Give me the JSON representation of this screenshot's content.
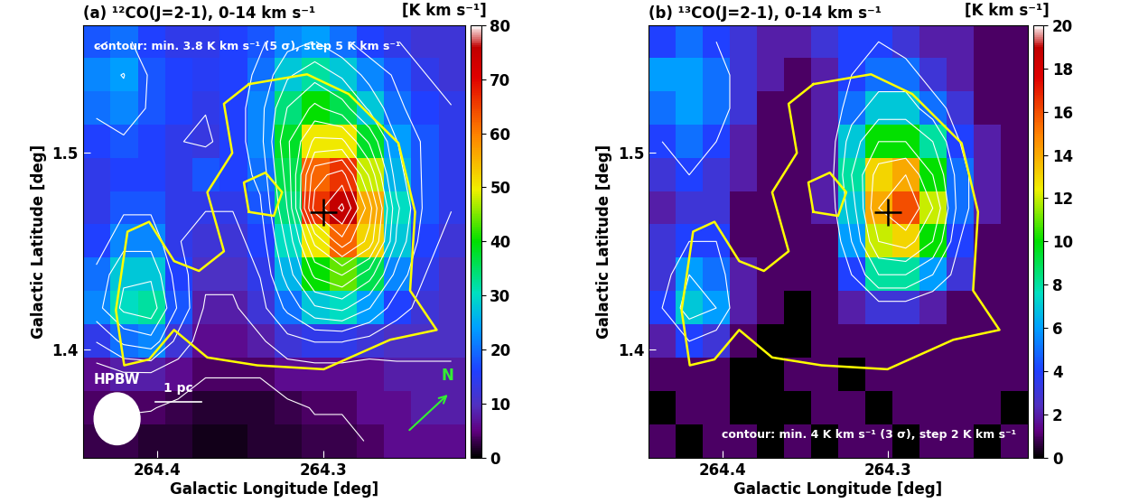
{
  "chart_data": [
    {
      "type": "heatmap",
      "title": "(a) ¹²CO(J=2-1), 0-14 km s⁻¹",
      "xlabel": "Galactic Longitude [deg]",
      "ylabel": "Galactic Latitude [deg]",
      "colorbar_label": "[K km s⁻¹]",
      "xlim": [
        264.445,
        264.215
      ],
      "ylim": [
        1.345,
        1.565
      ],
      "xticks": [
        264.4,
        264.3
      ],
      "yticks": [
        1.4,
        1.5
      ],
      "colorbar_range": [
        0,
        80
      ],
      "colorbar_ticks": [
        0,
        10,
        20,
        30,
        40,
        50,
        60,
        70,
        80
      ],
      "cells": [
        [
          18,
          20,
          16,
          14,
          14,
          16,
          18,
          22,
          24,
          20,
          16,
          14,
          12,
          12
        ],
        [
          22,
          24,
          18,
          16,
          15,
          16,
          20,
          28,
          32,
          28,
          22,
          18,
          14,
          12
        ],
        [
          20,
          22,
          18,
          16,
          14,
          16,
          22,
          34,
          40,
          36,
          28,
          20,
          16,
          14
        ],
        [
          16,
          18,
          16,
          14,
          13,
          16,
          22,
          38,
          50,
          50,
          38,
          24,
          18,
          14
        ],
        [
          14,
          16,
          16,
          14,
          18,
          16,
          20,
          36,
          62,
          66,
          48,
          26,
          18,
          14
        ],
        [
          14,
          18,
          18,
          14,
          14,
          14,
          18,
          34,
          66,
          75,
          56,
          30,
          18,
          14
        ],
        [
          16,
          22,
          22,
          14,
          12,
          12,
          16,
          30,
          50,
          62,
          52,
          28,
          16,
          12
        ],
        [
          20,
          28,
          28,
          16,
          10,
          10,
          14,
          26,
          40,
          44,
          36,
          22,
          14,
          10
        ],
        [
          22,
          30,
          32,
          18,
          8,
          8,
          12,
          20,
          28,
          30,
          24,
          16,
          12,
          10
        ],
        [
          14,
          20,
          22,
          12,
          6,
          6,
          8,
          12,
          14,
          14,
          12,
          10,
          10,
          10
        ],
        [
          6,
          8,
          8,
          6,
          4,
          4,
          4,
          6,
          6,
          6,
          6,
          8,
          8,
          8
        ],
        [
          4,
          4,
          4,
          3,
          2,
          2,
          2,
          3,
          4,
          4,
          6,
          6,
          8,
          8
        ],
        [
          3,
          3,
          2,
          2,
          1,
          1,
          2,
          2,
          3,
          3,
          4,
          6,
          6,
          6
        ]
      ],
      "contour_levels": [
        3.8,
        8.8,
        13.8,
        18.8,
        23.8,
        28.8,
        33.8,
        38.8,
        43.8,
        48.8,
        53.8,
        58.8,
        63.8,
        68.8,
        73.8
      ],
      "contour_note": "contour: min. 3.8 K km s⁻¹ (5 σ), step 5 K km s⁻¹",
      "halpha_contours": [
        [
          [
            264.345,
            1.535
          ],
          [
            264.31,
            1.54
          ],
          [
            264.285,
            1.53
          ],
          [
            264.255,
            1.505
          ],
          [
            264.245,
            1.47
          ],
          [
            264.248,
            1.43
          ],
          [
            264.232,
            1.41
          ],
          [
            264.26,
            1.405
          ],
          [
            264.3,
            1.39
          ],
          [
            264.34,
            1.392
          ],
          [
            264.37,
            1.396
          ],
          [
            264.39,
            1.41
          ],
          [
            264.405,
            1.395
          ],
          [
            264.42,
            1.392
          ],
          [
            264.425,
            1.42
          ],
          [
            264.418,
            1.46
          ],
          [
            264.405,
            1.465
          ],
          [
            264.39,
            1.445
          ],
          [
            264.375,
            1.44
          ],
          [
            264.36,
            1.45
          ],
          [
            264.37,
            1.48
          ],
          [
            264.355,
            1.5
          ],
          [
            264.36,
            1.525
          ],
          [
            264.345,
            1.535
          ]
        ],
        [
          [
            264.345,
            1.47
          ],
          [
            264.33,
            1.468
          ],
          [
            264.325,
            1.48
          ],
          [
            264.335,
            1.49
          ],
          [
            264.348,
            1.485
          ],
          [
            264.345,
            1.47
          ]
        ]
      ],
      "source_position": [
        264.3,
        1.47
      ],
      "hpbw_label": "HPBW",
      "scale_label": "1 pc",
      "north_label": "N"
    },
    {
      "type": "heatmap",
      "title": "(b) ¹³CO(J=2-1), 0-14 km s⁻¹",
      "xlabel": "Galactic Longitude [deg]",
      "ylabel": "Galactic Latitude [deg]",
      "colorbar_label": "[K km s⁻¹]",
      "xlim": [
        264.445,
        264.215
      ],
      "ylim": [
        1.345,
        1.565
      ],
      "xticks": [
        264.4,
        264.3
      ],
      "yticks": [
        1.4,
        1.5
      ],
      "colorbar_range": [
        0,
        20
      ],
      "colorbar_ticks": [
        0,
        2,
        4,
        6,
        8,
        10,
        12,
        14,
        16,
        18,
        20
      ],
      "cells": [
        [
          4,
          5,
          4,
          3,
          2,
          2,
          3,
          4,
          4,
          3,
          2,
          2,
          1,
          1
        ],
        [
          6,
          6,
          5,
          3,
          2,
          1,
          2,
          4,
          5,
          5,
          3,
          2,
          1,
          1
        ],
        [
          5,
          6,
          5,
          3,
          1,
          1,
          2,
          5,
          7,
          7,
          5,
          3,
          1,
          1
        ],
        [
          4,
          5,
          4,
          2,
          1,
          1,
          2,
          7,
          10,
          10,
          8,
          4,
          2,
          1
        ],
        [
          3,
          4,
          3,
          2,
          1,
          1,
          2,
          8,
          13,
          14,
          10,
          5,
          2,
          1
        ],
        [
          2,
          3,
          3,
          1,
          1,
          1,
          2,
          7,
          14,
          16,
          12,
          5,
          2,
          1
        ],
        [
          3,
          4,
          4,
          1,
          1,
          1,
          1,
          6,
          12,
          13,
          10,
          4,
          1,
          1
        ],
        [
          3,
          6,
          5,
          2,
          1,
          1,
          1,
          4,
          8,
          8,
          6,
          3,
          1,
          1
        ],
        [
          4,
          7,
          6,
          2,
          1,
          0,
          1,
          2,
          3,
          3,
          2,
          1,
          1,
          1
        ],
        [
          2,
          4,
          3,
          1,
          0,
          0,
          1,
          1,
          1,
          1,
          1,
          1,
          1,
          1
        ],
        [
          1,
          1,
          1,
          0,
          0,
          1,
          1,
          0,
          1,
          1,
          1,
          1,
          1,
          1
        ],
        [
          0,
          1,
          1,
          0,
          0,
          0,
          1,
          1,
          0,
          1,
          1,
          1,
          1,
          0
        ],
        [
          1,
          0,
          1,
          1,
          0,
          1,
          0,
          1,
          1,
          0,
          1,
          1,
          0,
          1
        ]
      ],
      "contour_levels": [
        4,
        6,
        8,
        10,
        12,
        14,
        16,
        18
      ],
      "contour_note": "contour: min. 4 K km s⁻¹ (3 σ), step 2 K km s⁻¹",
      "halpha_contours": [
        [
          [
            264.345,
            1.535
          ],
          [
            264.31,
            1.54
          ],
          [
            264.285,
            1.53
          ],
          [
            264.255,
            1.505
          ],
          [
            264.245,
            1.47
          ],
          [
            264.248,
            1.43
          ],
          [
            264.232,
            1.41
          ],
          [
            264.26,
            1.405
          ],
          [
            264.3,
            1.39
          ],
          [
            264.34,
            1.392
          ],
          [
            264.37,
            1.396
          ],
          [
            264.39,
            1.41
          ],
          [
            264.405,
            1.395
          ],
          [
            264.42,
            1.392
          ],
          [
            264.425,
            1.42
          ],
          [
            264.418,
            1.46
          ],
          [
            264.405,
            1.465
          ],
          [
            264.39,
            1.445
          ],
          [
            264.375,
            1.44
          ],
          [
            264.36,
            1.45
          ],
          [
            264.37,
            1.48
          ],
          [
            264.355,
            1.5
          ],
          [
            264.36,
            1.525
          ],
          [
            264.345,
            1.535
          ]
        ],
        [
          [
            264.345,
            1.47
          ],
          [
            264.33,
            1.468
          ],
          [
            264.325,
            1.48
          ],
          [
            264.335,
            1.49
          ],
          [
            264.348,
            1.485
          ],
          [
            264.345,
            1.47
          ]
        ]
      ],
      "source_position": [
        264.3,
        1.47
      ]
    }
  ]
}
